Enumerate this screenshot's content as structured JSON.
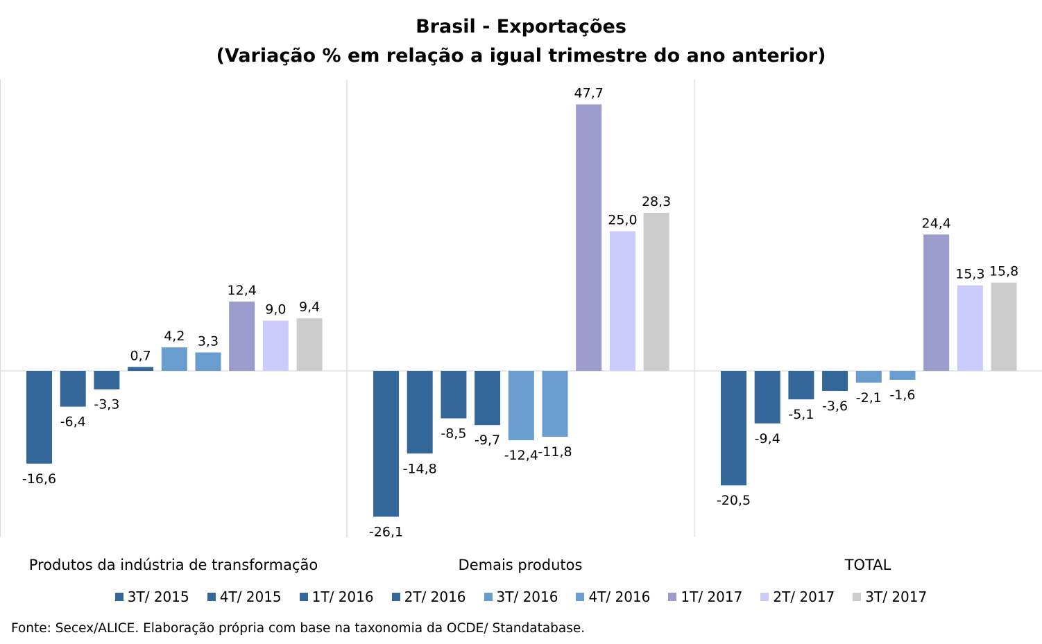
{
  "title_line1": "Brasil - Exportações",
  "title_line2": "(Variação % em relação a igual trimestre do ano anterior)",
  "source": "Fonte: Secex/ALICE. Elaboração própria com base na taxonomia da OCDE/ Standatabase.",
  "chart_data": {
    "type": "bar",
    "title": "Brasil - Exportações (Variação % em relação a igual trimestre do ano anterior)",
    "categories": [
      "Produtos da indústria de transformação",
      "Demais produtos",
      "TOTAL"
    ],
    "series": [
      {
        "name": "3T/ 2015",
        "color": "#33679a",
        "values": [
          -16.6,
          -26.1,
          -20.5
        ],
        "labels": [
          "-16,6",
          "-26,1",
          "-20,5"
        ]
      },
      {
        "name": "4T/ 2015",
        "color": "#33679a",
        "values": [
          -6.4,
          -14.8,
          -9.4
        ],
        "labels": [
          "-6,4",
          "-14,8",
          "-9,4"
        ]
      },
      {
        "name": "1T/ 2016",
        "color": "#33679a",
        "values": [
          -3.3,
          -8.5,
          -5.1
        ],
        "labels": [
          "-3,3",
          "-8,5",
          "-5,1"
        ]
      },
      {
        "name": "2T/ 2016",
        "color": "#33679a",
        "values": [
          0.7,
          -9.7,
          -3.6
        ],
        "labels": [
          "0,7",
          "-9,7",
          "-3,6"
        ]
      },
      {
        "name": "3T/ 2016",
        "color": "#699ccf",
        "values": [
          4.2,
          -12.4,
          -2.1
        ],
        "labels": [
          "4,2",
          "-12,4",
          "-2,1"
        ]
      },
      {
        "name": "4T/ 2016",
        "color": "#699ccf",
        "values": [
          3.3,
          -11.8,
          -1.6
        ],
        "labels": [
          "3,3",
          "-11,8",
          "-1,6"
        ]
      },
      {
        "name": "1T/ 2017",
        "color": "#9b9bcc",
        "values": [
          12.4,
          47.7,
          24.4
        ],
        "labels": [
          "12,4",
          "47,7",
          "24,4"
        ]
      },
      {
        "name": "2T/ 2017",
        "color": "#ccccfc",
        "values": [
          9.0,
          25.0,
          15.3
        ],
        "labels": [
          "9,0",
          "25,0",
          "15,3"
        ]
      },
      {
        "name": "3T/ 2017",
        "color": "#cccccc",
        "values": [
          9.4,
          28.3,
          15.8
        ],
        "labels": [
          "9,4",
          "28,3",
          "15,8"
        ]
      }
    ],
    "ylim": [
      -30,
      52
    ],
    "grid": false,
    "legend_position": "bottom"
  }
}
